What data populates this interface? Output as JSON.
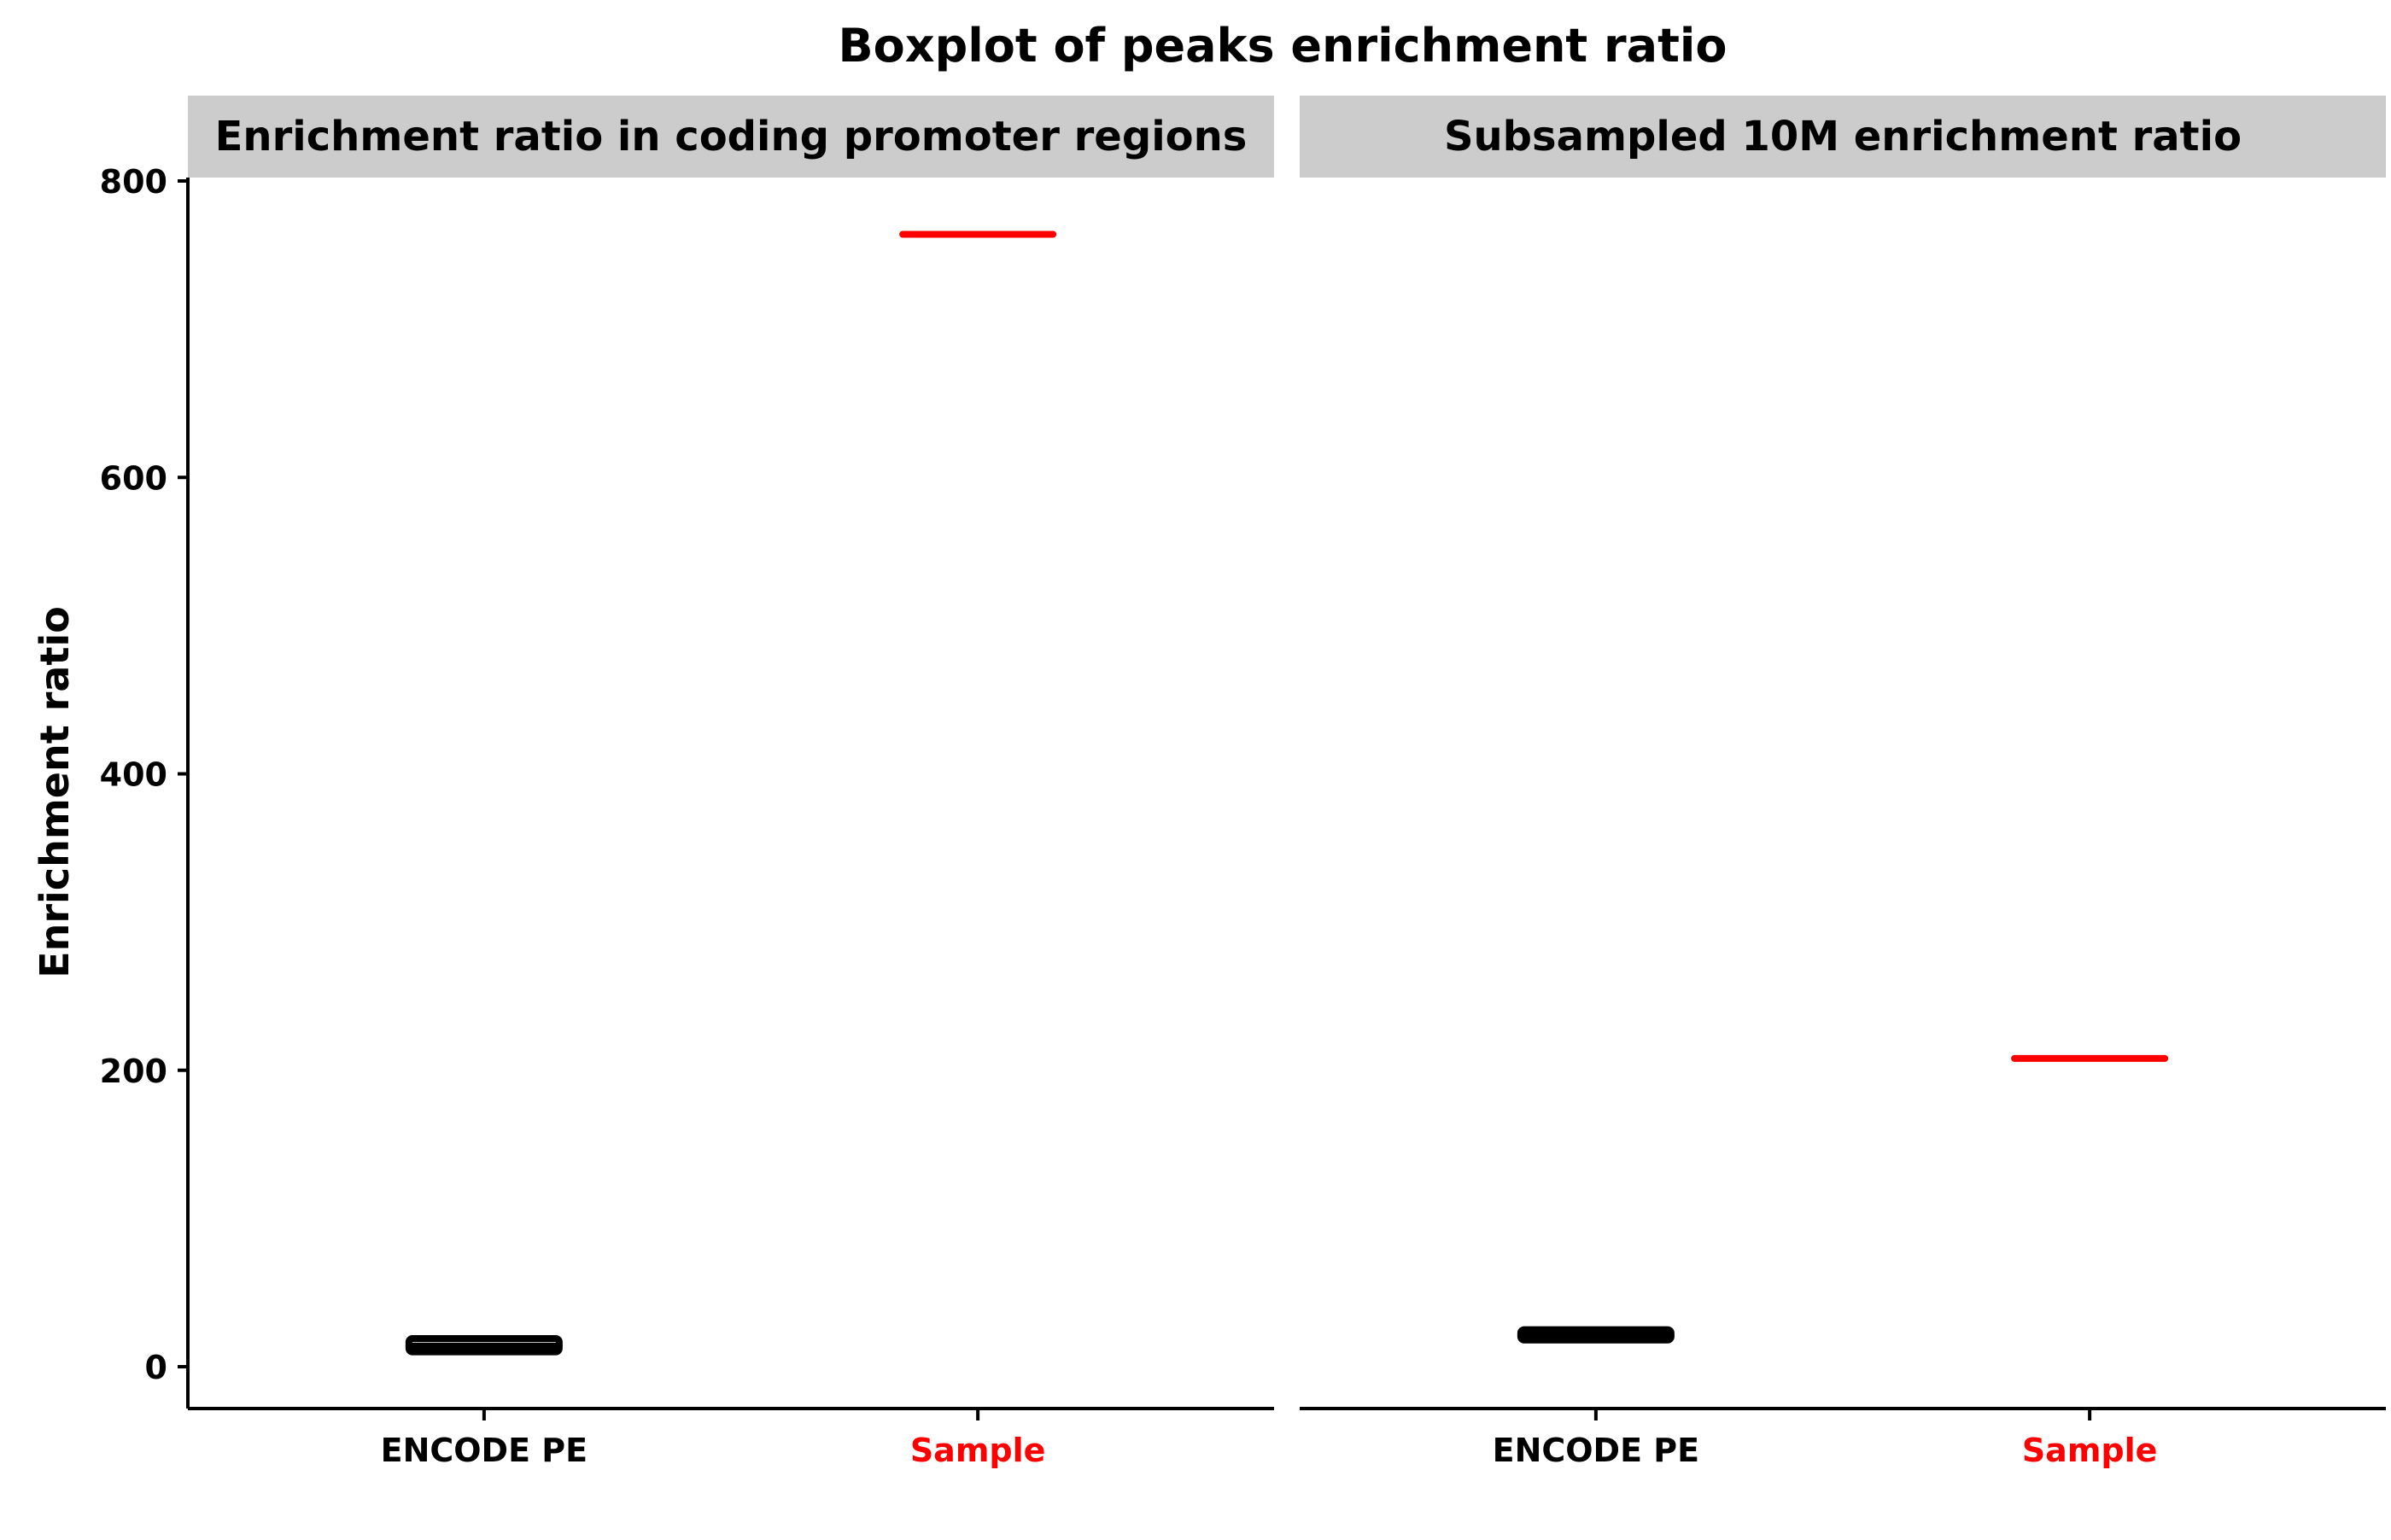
{
  "chart_data": {
    "type": "box",
    "title": "Boxplot of peaks enrichment ratio",
    "ylabel": "Enrichment ratio",
    "ylim": [
      -30,
      800
    ],
    "yticks": [
      0,
      200,
      400,
      600,
      800
    ],
    "categories": [
      "ENCODE PE",
      "Sample"
    ],
    "category_colors": [
      "#000000",
      "#ff0000"
    ],
    "panels": [
      {
        "strip_label": "Enrichment ratio in coding promoter regions",
        "boxes": [
          {
            "category": "ENCODE PE",
            "q1": 10,
            "median": 14,
            "q3": 19,
            "whisker_low": 10,
            "whisker_high": 19,
            "color": "#000000"
          },
          {
            "category": "Sample",
            "q1": 764,
            "median": 764,
            "q3": 764,
            "whisker_low": 764,
            "whisker_high": 764,
            "color": "#ff0000"
          }
        ]
      },
      {
        "strip_label": "Subsampled 10M enrichment ratio",
        "boxes": [
          {
            "category": "ENCODE PE",
            "q1": 18,
            "median": 21,
            "q3": 25,
            "whisker_low": 18,
            "whisker_high": 25,
            "color": "#000000"
          },
          {
            "category": "Sample",
            "q1": 208,
            "median": 208,
            "q3": 208,
            "whisker_low": 208,
            "whisker_high": 208,
            "color": "#ff0000"
          }
        ]
      }
    ],
    "grid": false,
    "legend": "none"
  }
}
